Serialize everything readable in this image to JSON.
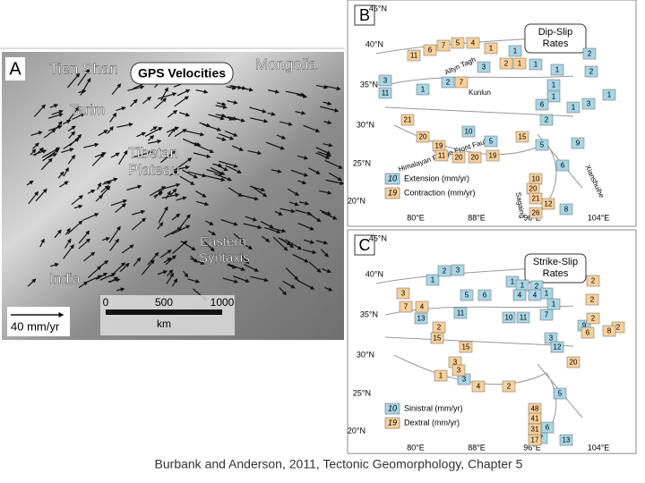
{
  "panel_a": {
    "letter": "A",
    "title": "GPS Velocities",
    "labels": [
      "Tien Shan",
      "Mongolia",
      "Tarim",
      "Tibetan",
      "Plateau",
      "Eastern",
      "Syntaxis",
      "India"
    ],
    "scale_ticks": [
      "0",
      "500",
      "1000"
    ],
    "scale_unit": "km",
    "velocity_scale": "40 mm/yr"
  },
  "panel_b": {
    "letter": "B",
    "title": [
      "Dip-Slip",
      "Rates"
    ],
    "lat_labels": [
      "45°N",
      "40°N",
      "35°N",
      "30°N",
      "25°N",
      "20°N"
    ],
    "lon_labels": [
      "80°E",
      "88°E",
      "96°E",
      "104°E"
    ],
    "fault_labels": [
      "Altyn Tagh",
      "Kunlun",
      "Himalayan Range Front Faults",
      "Xianshuihe",
      "Sagaing"
    ],
    "legend": [
      {
        "sample": 10,
        "label": "Extension (mm/yr)"
      },
      {
        "sample": 19,
        "label": "Contraction (mm/yr)"
      }
    ],
    "extension_rates": [
      1,
      2,
      3,
      1,
      1,
      3,
      11,
      1,
      2,
      1,
      1,
      6,
      1,
      2,
      2,
      10,
      5,
      9,
      5,
      6,
      8,
      3,
      1
    ],
    "contraction_rates": [
      11,
      6,
      7,
      5,
      4,
      1,
      2,
      1,
      7,
      21,
      20,
      19,
      11,
      20,
      20,
      19,
      15,
      10,
      20,
      21,
      12,
      26
    ]
  },
  "panel_c": {
    "letter": "C",
    "title": [
      "Strike-Slip",
      "Rates"
    ],
    "lat_labels": [
      "45°N",
      "40°N",
      "35°N",
      "30°N",
      "25°N",
      "20°N"
    ],
    "lon_labels": [
      "80°E",
      "88°E",
      "96°E",
      "104°E"
    ],
    "legend": [
      {
        "sample": 10,
        "label": "Sinistral (mm/yr)"
      },
      {
        "sample": 19,
        "label": "Dextral (mm/yr)"
      }
    ],
    "sinistral_rates": [
      1,
      2,
      3,
      1,
      5,
      6,
      1,
      2,
      1,
      4,
      4,
      13,
      11,
      10,
      11,
      7,
      3,
      12,
      1,
      9,
      3,
      5,
      6,
      7,
      13
    ],
    "dextral_rates": [
      2,
      3,
      7,
      4,
      2,
      2,
      2,
      15,
      15,
      3,
      1,
      3,
      4,
      2,
      48,
      41,
      31,
      17,
      20,
      2,
      8,
      6
    ]
  },
  "caption": "Burbank and Anderson, 2011, Tectonic Geomorphology, Chapter 5"
}
